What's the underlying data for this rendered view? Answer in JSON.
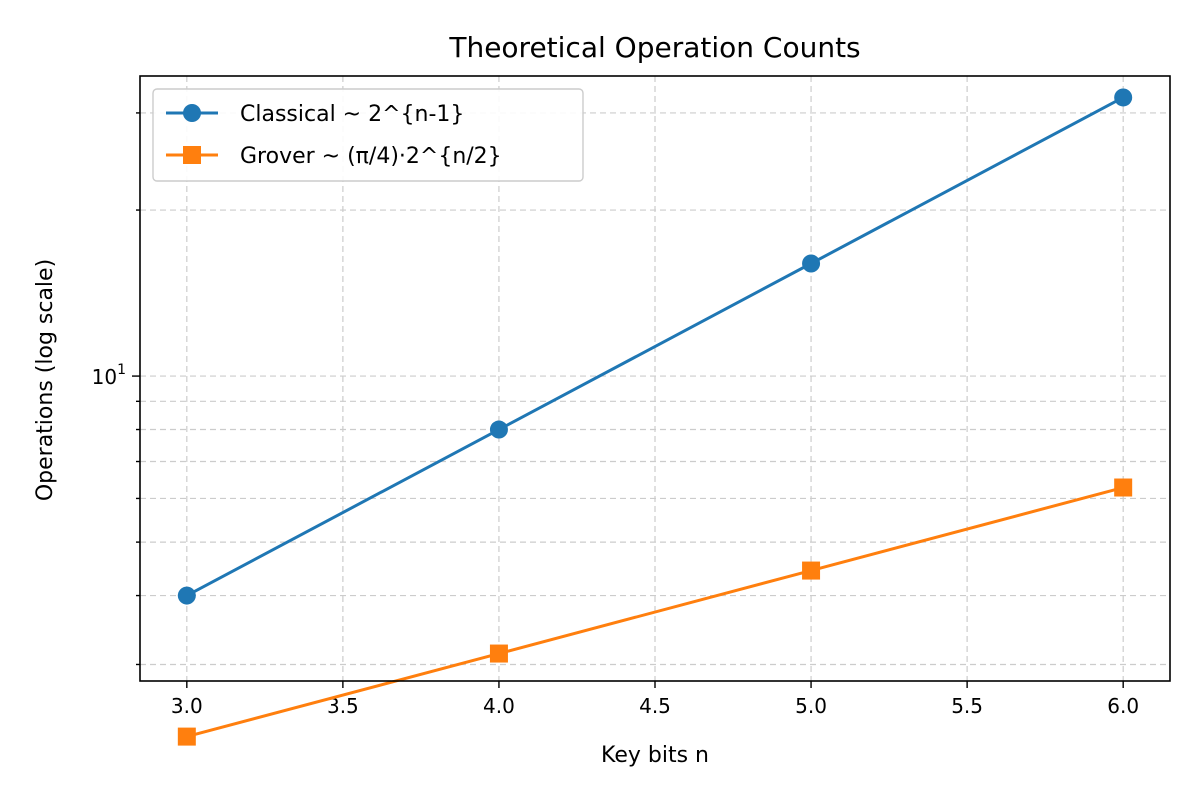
{
  "chart_data": {
    "type": "line",
    "title": "Theoretical Operation Counts",
    "xlabel": "Key bits n",
    "ylabel": "Operations (log scale)",
    "xlim": [
      2.85,
      6.15
    ],
    "ylim": [
      2.8,
      35
    ],
    "y_scale": "log",
    "grid": true,
    "legend_position": "top-left",
    "x_ticks": [
      "3.0",
      "3.5",
      "4.0",
      "4.5",
      "5.0",
      "5.5",
      "6.0"
    ],
    "y_major_tick": {
      "value": 10,
      "label": "10",
      "exponent": "1"
    },
    "series": [
      {
        "name": "Classical ~ 2^{n-1}",
        "color": "#1f77b4",
        "marker": "circle",
        "x": [
          3,
          4,
          5,
          6
        ],
        "y": [
          4,
          8,
          16,
          32
        ]
      },
      {
        "name": "Grover ~ (π/4)·2^{n/2}",
        "color": "#ff7f0e",
        "marker": "square",
        "x": [
          3,
          4,
          5,
          6
        ],
        "y": [
          2.22,
          3.14,
          4.44,
          6.28
        ]
      }
    ]
  }
}
